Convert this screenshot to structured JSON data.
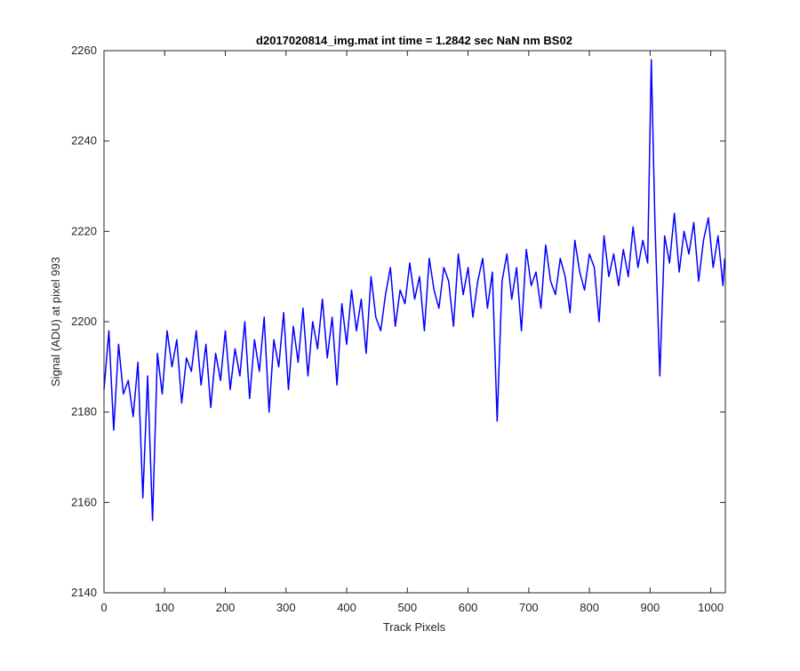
{
  "chart_data": {
    "type": "line",
    "title": "d2017020814_img.mat int time = 1.2842 sec  NaN nm BS02",
    "xlabel": "Track Pixels",
    "ylabel": "Signal (ADU) at pixel 993",
    "xlim": [
      0,
      1024
    ],
    "ylim": [
      2140,
      2260
    ],
    "xticks": [
      0,
      100,
      200,
      300,
      400,
      500,
      600,
      700,
      800,
      900,
      1000
    ],
    "yticks": [
      2140,
      2160,
      2180,
      2200,
      2220,
      2240,
      2260
    ],
    "grid": false,
    "line_color": "#0000ff",
    "series": [
      {
        "x": [
          0,
          8,
          16,
          24,
          32,
          40,
          48,
          56,
          64,
          72,
          80,
          88,
          96,
          104,
          112,
          120,
          128,
          136,
          144,
          152,
          160,
          168,
          176,
          184,
          192,
          200,
          208,
          216,
          224,
          232,
          240,
          248,
          256,
          264,
          272,
          280,
          288,
          296,
          304,
          312,
          320,
          328,
          336,
          344,
          352,
          360,
          368,
          376,
          384,
          392,
          400,
          408,
          416,
          424,
          432,
          440,
          448,
          456,
          464,
          472,
          480,
          488,
          496,
          504,
          512,
          520,
          528,
          536,
          544,
          552,
          560,
          568,
          576,
          584,
          592,
          600,
          608,
          616,
          624,
          632,
          640,
          648,
          656,
          664,
          672,
          680,
          688,
          696,
          704,
          712,
          720,
          728,
          736,
          744,
          752,
          760,
          768,
          776,
          784,
          792,
          800,
          808,
          816,
          824,
          832,
          840,
          848,
          856,
          864,
          872,
          880,
          888,
          896,
          902,
          908,
          916,
          924,
          932,
          940,
          948,
          956,
          964,
          972,
          980,
          988,
          996,
          1004,
          1012,
          1020,
          1023
        ],
        "y": [
          2185,
          2198,
          2176,
          2195,
          2184,
          2187,
          2179,
          2191,
          2161,
          2188,
          2156,
          2193,
          2184,
          2198,
          2190,
          2196,
          2182,
          2192,
          2189,
          2198,
          2186,
          2195,
          2181,
          2193,
          2187,
          2198,
          2185,
          2194,
          2188,
          2200,
          2183,
          2196,
          2189,
          2201,
          2180,
          2196,
          2190,
          2202,
          2185,
          2199,
          2191,
          2203,
          2188,
          2200,
          2194,
          2205,
          2192,
          2201,
          2186,
          2204,
          2195,
          2207,
          2198,
          2205,
          2193,
          2210,
          2201,
          2198,
          2206,
          2212,
          2199,
          2207,
          2204,
          2213,
          2205,
          2210,
          2198,
          2214,
          2207,
          2203,
          2212,
          2209,
          2199,
          2215,
          2206,
          2212,
          2201,
          2209,
          2214,
          2203,
          2211,
          2178,
          2209,
          2215,
          2205,
          2212,
          2198,
          2216,
          2208,
          2211,
          2203,
          2217,
          2209,
          2206,
          2214,
          2210,
          2202,
          2218,
          2211,
          2207,
          2215,
          2212,
          2200,
          2219,
          2210,
          2215,
          2208,
          2216,
          2210,
          2221,
          2212,
          2218,
          2213,
          2258,
          2222,
          2188,
          2219,
          2213,
          2224,
          2211,
          2220,
          2215,
          2222,
          2209,
          2218,
          2223,
          2212,
          2219,
          2208,
          2214
        ]
      }
    ]
  }
}
